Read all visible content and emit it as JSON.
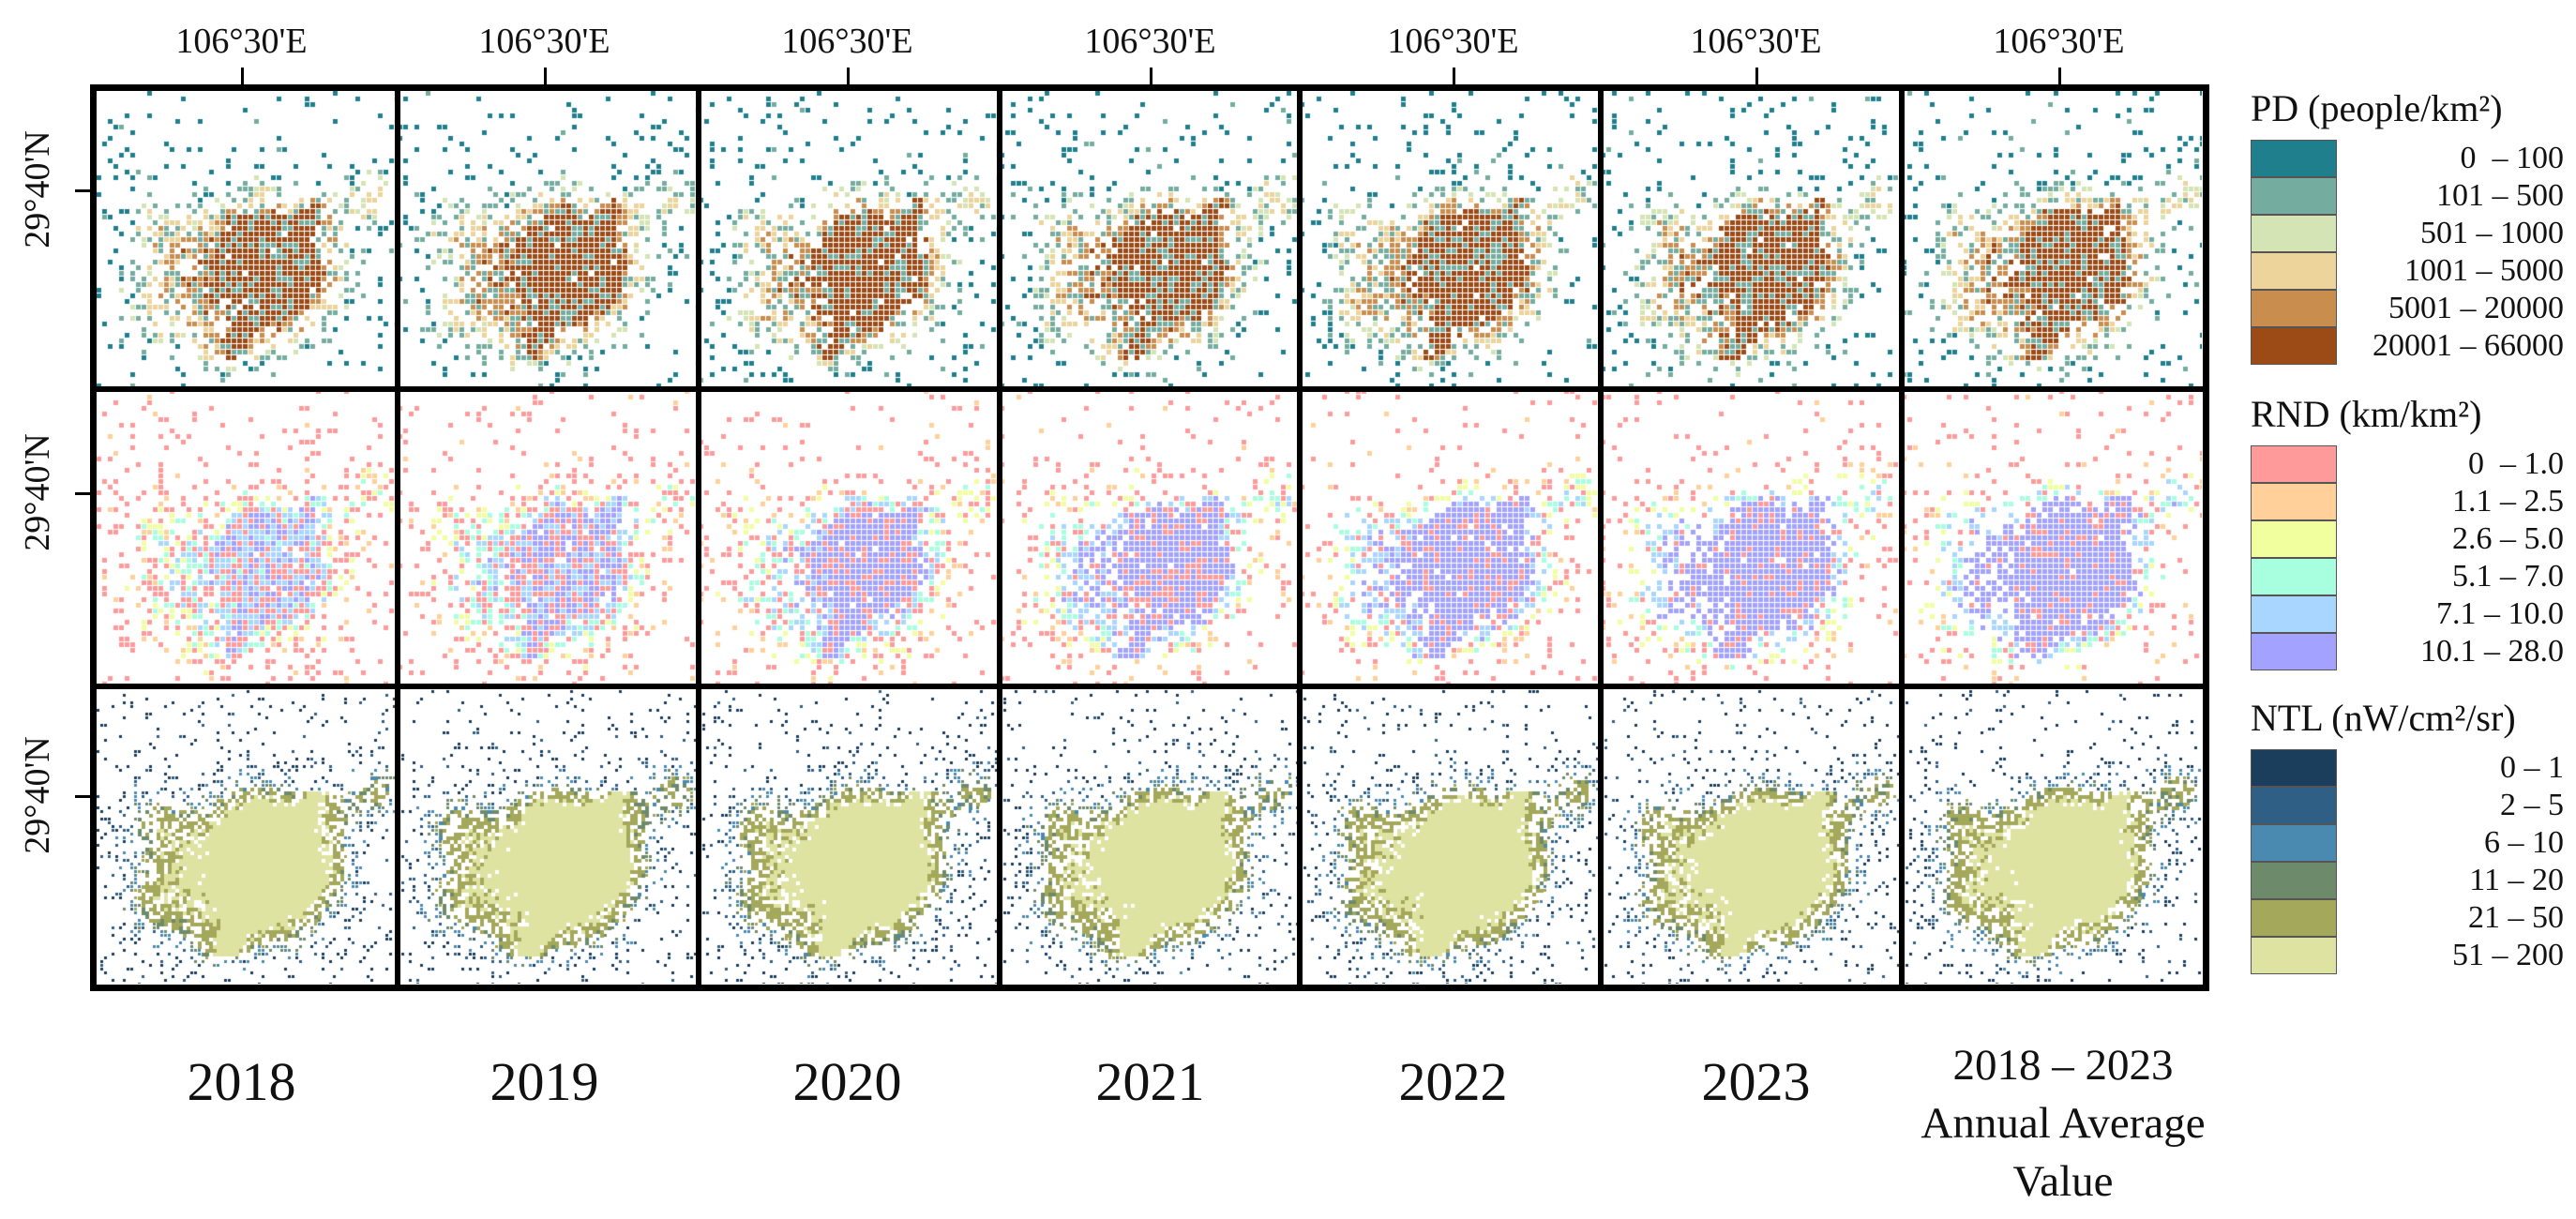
{
  "longitude_label": "106°30'E",
  "latitude_label": "29°40'N",
  "years": [
    "2018",
    "2019",
    "2020",
    "2021",
    "2022",
    "2023"
  ],
  "average_label": [
    "2018 – 2023",
    "Annual Average",
    "Value"
  ],
  "rows": [
    {
      "id": "pd",
      "title": "PD (people/km²)",
      "classes": [
        {
          "range": "0  – 100",
          "color": "#1f7f8c"
        },
        {
          "range": "101 – 500",
          "color": "#74ad9f"
        },
        {
          "range": "501 – 1000",
          "color": "#d4e4b4"
        },
        {
          "range": "1001 – 5000",
          "color": "#ecd49a"
        },
        {
          "range": "5001 – 20000",
          "color": "#c98d4e"
        },
        {
          "range": "20001 – 66000",
          "color": "#9c4a16"
        }
      ]
    },
    {
      "id": "rnd",
      "title": "RND (km/km²)",
      "classes": [
        {
          "range": "0  – 1.0",
          "color": "#ff9a9a"
        },
        {
          "range": "1.1 – 2.5",
          "color": "#ffd09a"
        },
        {
          "range": "2.6 – 5.0",
          "color": "#f1ff9e"
        },
        {
          "range": "5.1 – 7.0",
          "color": "#a8ffe0"
        },
        {
          "range": "7.1 – 10.0",
          "color": "#a8d6ff"
        },
        {
          "range": "10.1 – 28.0",
          "color": "#a3a2ff"
        }
      ]
    },
    {
      "id": "ntl",
      "title": "NTL (nW/cm²/sr)",
      "classes": [
        {
          "range": "0 – 1",
          "color": "#1a3e5c"
        },
        {
          "range": "2 – 5",
          "color": "#2f5f84"
        },
        {
          "range": "6 – 10",
          "color": "#4a8ab0"
        },
        {
          "range": "11 – 20",
          "color": "#6d8a6b"
        },
        {
          "range": "21 – 50",
          "color": "#a3a85a"
        },
        {
          "range": "51 – 200",
          "color": "#dfe3a2"
        }
      ]
    }
  ]
}
